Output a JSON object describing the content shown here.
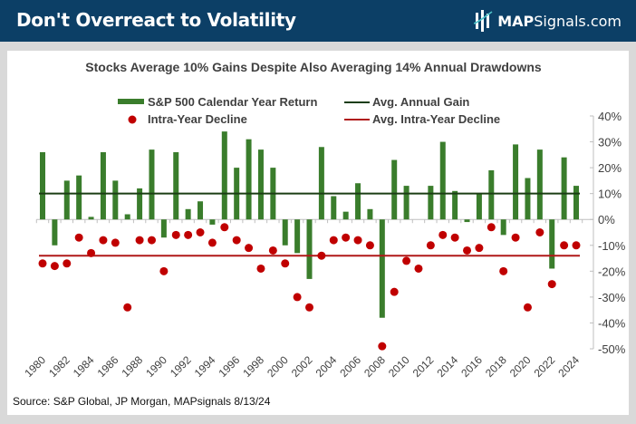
{
  "header": {
    "title": "Don't Overreact to Volatility",
    "logo_bold": "MAP",
    "logo_rest": "Signals.com",
    "bg_color": "#0c3f66"
  },
  "source": "Source: S&P Global, JP Morgan, MAPsignals 8/13/24",
  "chart_data": {
    "type": "bar",
    "title": "Stocks Average 10% Gains Despite Also Averaging 14% Annual Drawdowns",
    "xlabel": "",
    "ylabel": "",
    "ylim": [
      -50,
      40
    ],
    "yticks": [
      40,
      30,
      20,
      10,
      0,
      -10,
      -20,
      -30,
      -40,
      -50
    ],
    "ytick_labels": [
      "40%",
      "30%",
      "20%",
      "10%",
      "0%",
      "-10%",
      "-20%",
      "-30%",
      "-40%",
      "-50%"
    ],
    "y_axis_side": "right",
    "grid": false,
    "legend_placement": "top",
    "categories": [
      1980,
      1981,
      1982,
      1983,
      1984,
      1985,
      1986,
      1987,
      1988,
      1989,
      1990,
      1991,
      1992,
      1993,
      1994,
      1995,
      1996,
      1997,
      1998,
      1999,
      2000,
      2001,
      2002,
      2003,
      2004,
      2005,
      2006,
      2007,
      2008,
      2009,
      2010,
      2011,
      2012,
      2013,
      2014,
      2015,
      2016,
      2017,
      2018,
      2019,
      2020,
      2021,
      2022,
      2023,
      2024
    ],
    "xtick_labels": [
      "1980",
      "1982",
      "1984",
      "1986",
      "1988",
      "1990",
      "1992",
      "1994",
      "1996",
      "1998",
      "2000",
      "2002",
      "2004",
      "2006",
      "2008",
      "2010",
      "2012",
      "2014",
      "2016",
      "2018",
      "2020",
      "2022",
      "2024"
    ],
    "series": [
      {
        "name": "S&P 500 Calendar Year Return",
        "kind": "bar",
        "color": "#3a7d2c",
        "values": [
          26,
          -10,
          15,
          17,
          1,
          26,
          15,
          2,
          12,
          27,
          -7,
          26,
          4,
          7,
          -2,
          34,
          20,
          31,
          27,
          20,
          -10,
          -13,
          -23,
          28,
          9,
          3,
          14,
          4,
          -38,
          23,
          13,
          0,
          13,
          30,
          11,
          -1,
          10,
          19,
          -6,
          29,
          16,
          27,
          -19,
          24,
          13
        ]
      },
      {
        "name": "Intra-Year Decline",
        "kind": "scatter",
        "color": "#c00000",
        "values": [
          -17,
          -18,
          -17,
          -7,
          -13,
          -8,
          -9,
          -34,
          -8,
          -8,
          -20,
          -6,
          -6,
          -5,
          -9,
          -3,
          -8,
          -11,
          -19,
          -12,
          -17,
          -30,
          -34,
          -14,
          -8,
          -7,
          -8,
          -10,
          -49,
          -28,
          -16,
          -19,
          -10,
          -6,
          -7,
          -12,
          -11,
          -3,
          -20,
          -7,
          -34,
          -5,
          -25,
          -10,
          -10
        ]
      },
      {
        "name": "Avg. Annual Gain",
        "kind": "hline",
        "color": "#1b3d14",
        "value": 10
      },
      {
        "name": "Avg. Intra-Year Decline",
        "kind": "hline",
        "color": "#b01818",
        "value": -14
      }
    ]
  }
}
